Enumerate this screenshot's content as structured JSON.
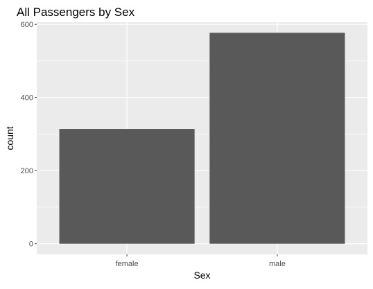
{
  "chart_data": {
    "type": "bar",
    "title": "All Passengers by Sex",
    "xlabel": "Sex",
    "ylabel": "count",
    "categories": [
      "female",
      "male"
    ],
    "values": [
      314,
      577
    ],
    "ylim": [
      -29,
      606
    ],
    "y_ticks": [
      0,
      200,
      400,
      600
    ],
    "y_tick_labels": [
      "0",
      "200",
      "400",
      "600"
    ],
    "grid": true,
    "legend": "none",
    "colors": {
      "bar": "#595959",
      "panel_background": "#ebebeb",
      "grid": "#ffffff",
      "text": "#000000",
      "tick_label": "#4d4d4d",
      "tick": "#333333"
    }
  }
}
